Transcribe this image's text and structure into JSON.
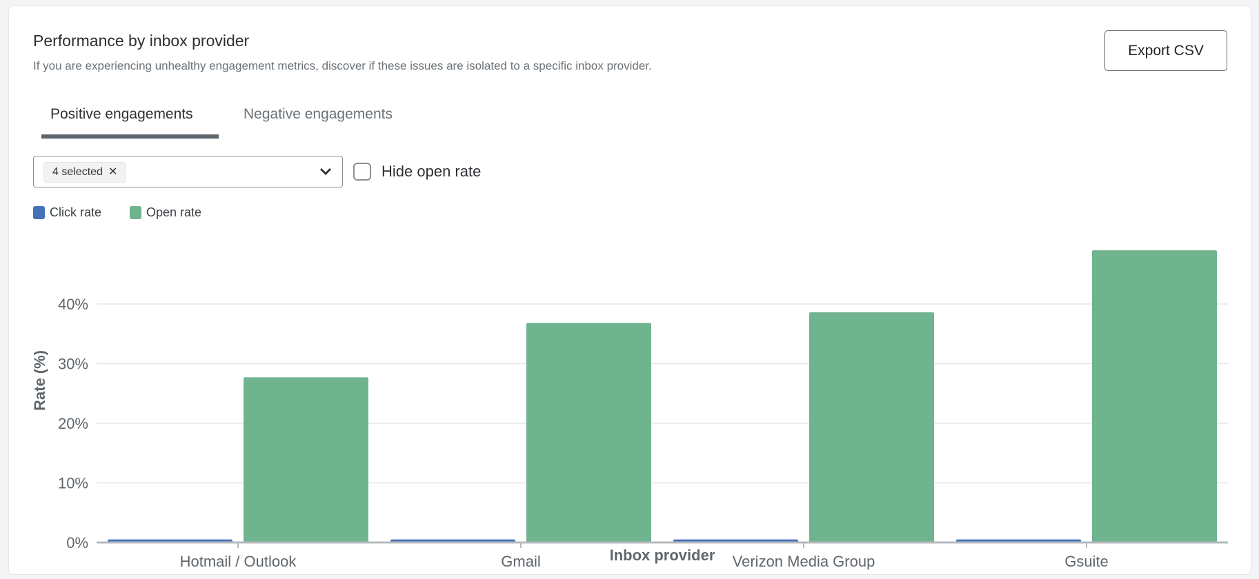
{
  "header": {
    "title": "Performance by inbox provider",
    "subtitle": "If you are experiencing unhealthy engagement metrics, discover if these issues are isolated to a specific inbox provider.",
    "export_label": "Export CSV"
  },
  "tabs": [
    {
      "label": "Positive engagements",
      "active": true
    },
    {
      "label": "Negative engagements",
      "active": false
    }
  ],
  "filter": {
    "chip_label": "4 selected",
    "checkbox_label": "Hide open rate",
    "checked": false
  },
  "colors": {
    "click": "#4472b8",
    "open": "#70b38f"
  },
  "chart_data": {
    "type": "bar",
    "categories": [
      "Hotmail / Outlook",
      "Gmail",
      "Verizon Media Group",
      "Gsuite"
    ],
    "series": [
      {
        "name": "Click rate",
        "values": [
          0.5,
          0.5,
          0.5,
          0.5
        ]
      },
      {
        "name": "Open rate",
        "values": [
          27.7,
          36.8,
          38.6,
          49.0
        ]
      }
    ],
    "xlabel": "Inbox provider",
    "ylabel": "Rate (%)",
    "ylim": [
      0,
      50
    ],
    "yticks": [
      0,
      10,
      20,
      30,
      40
    ],
    "ytick_labels": [
      "0%",
      "10%",
      "20%",
      "30%",
      "40%"
    ],
    "grid": true,
    "legend": "top-left"
  }
}
